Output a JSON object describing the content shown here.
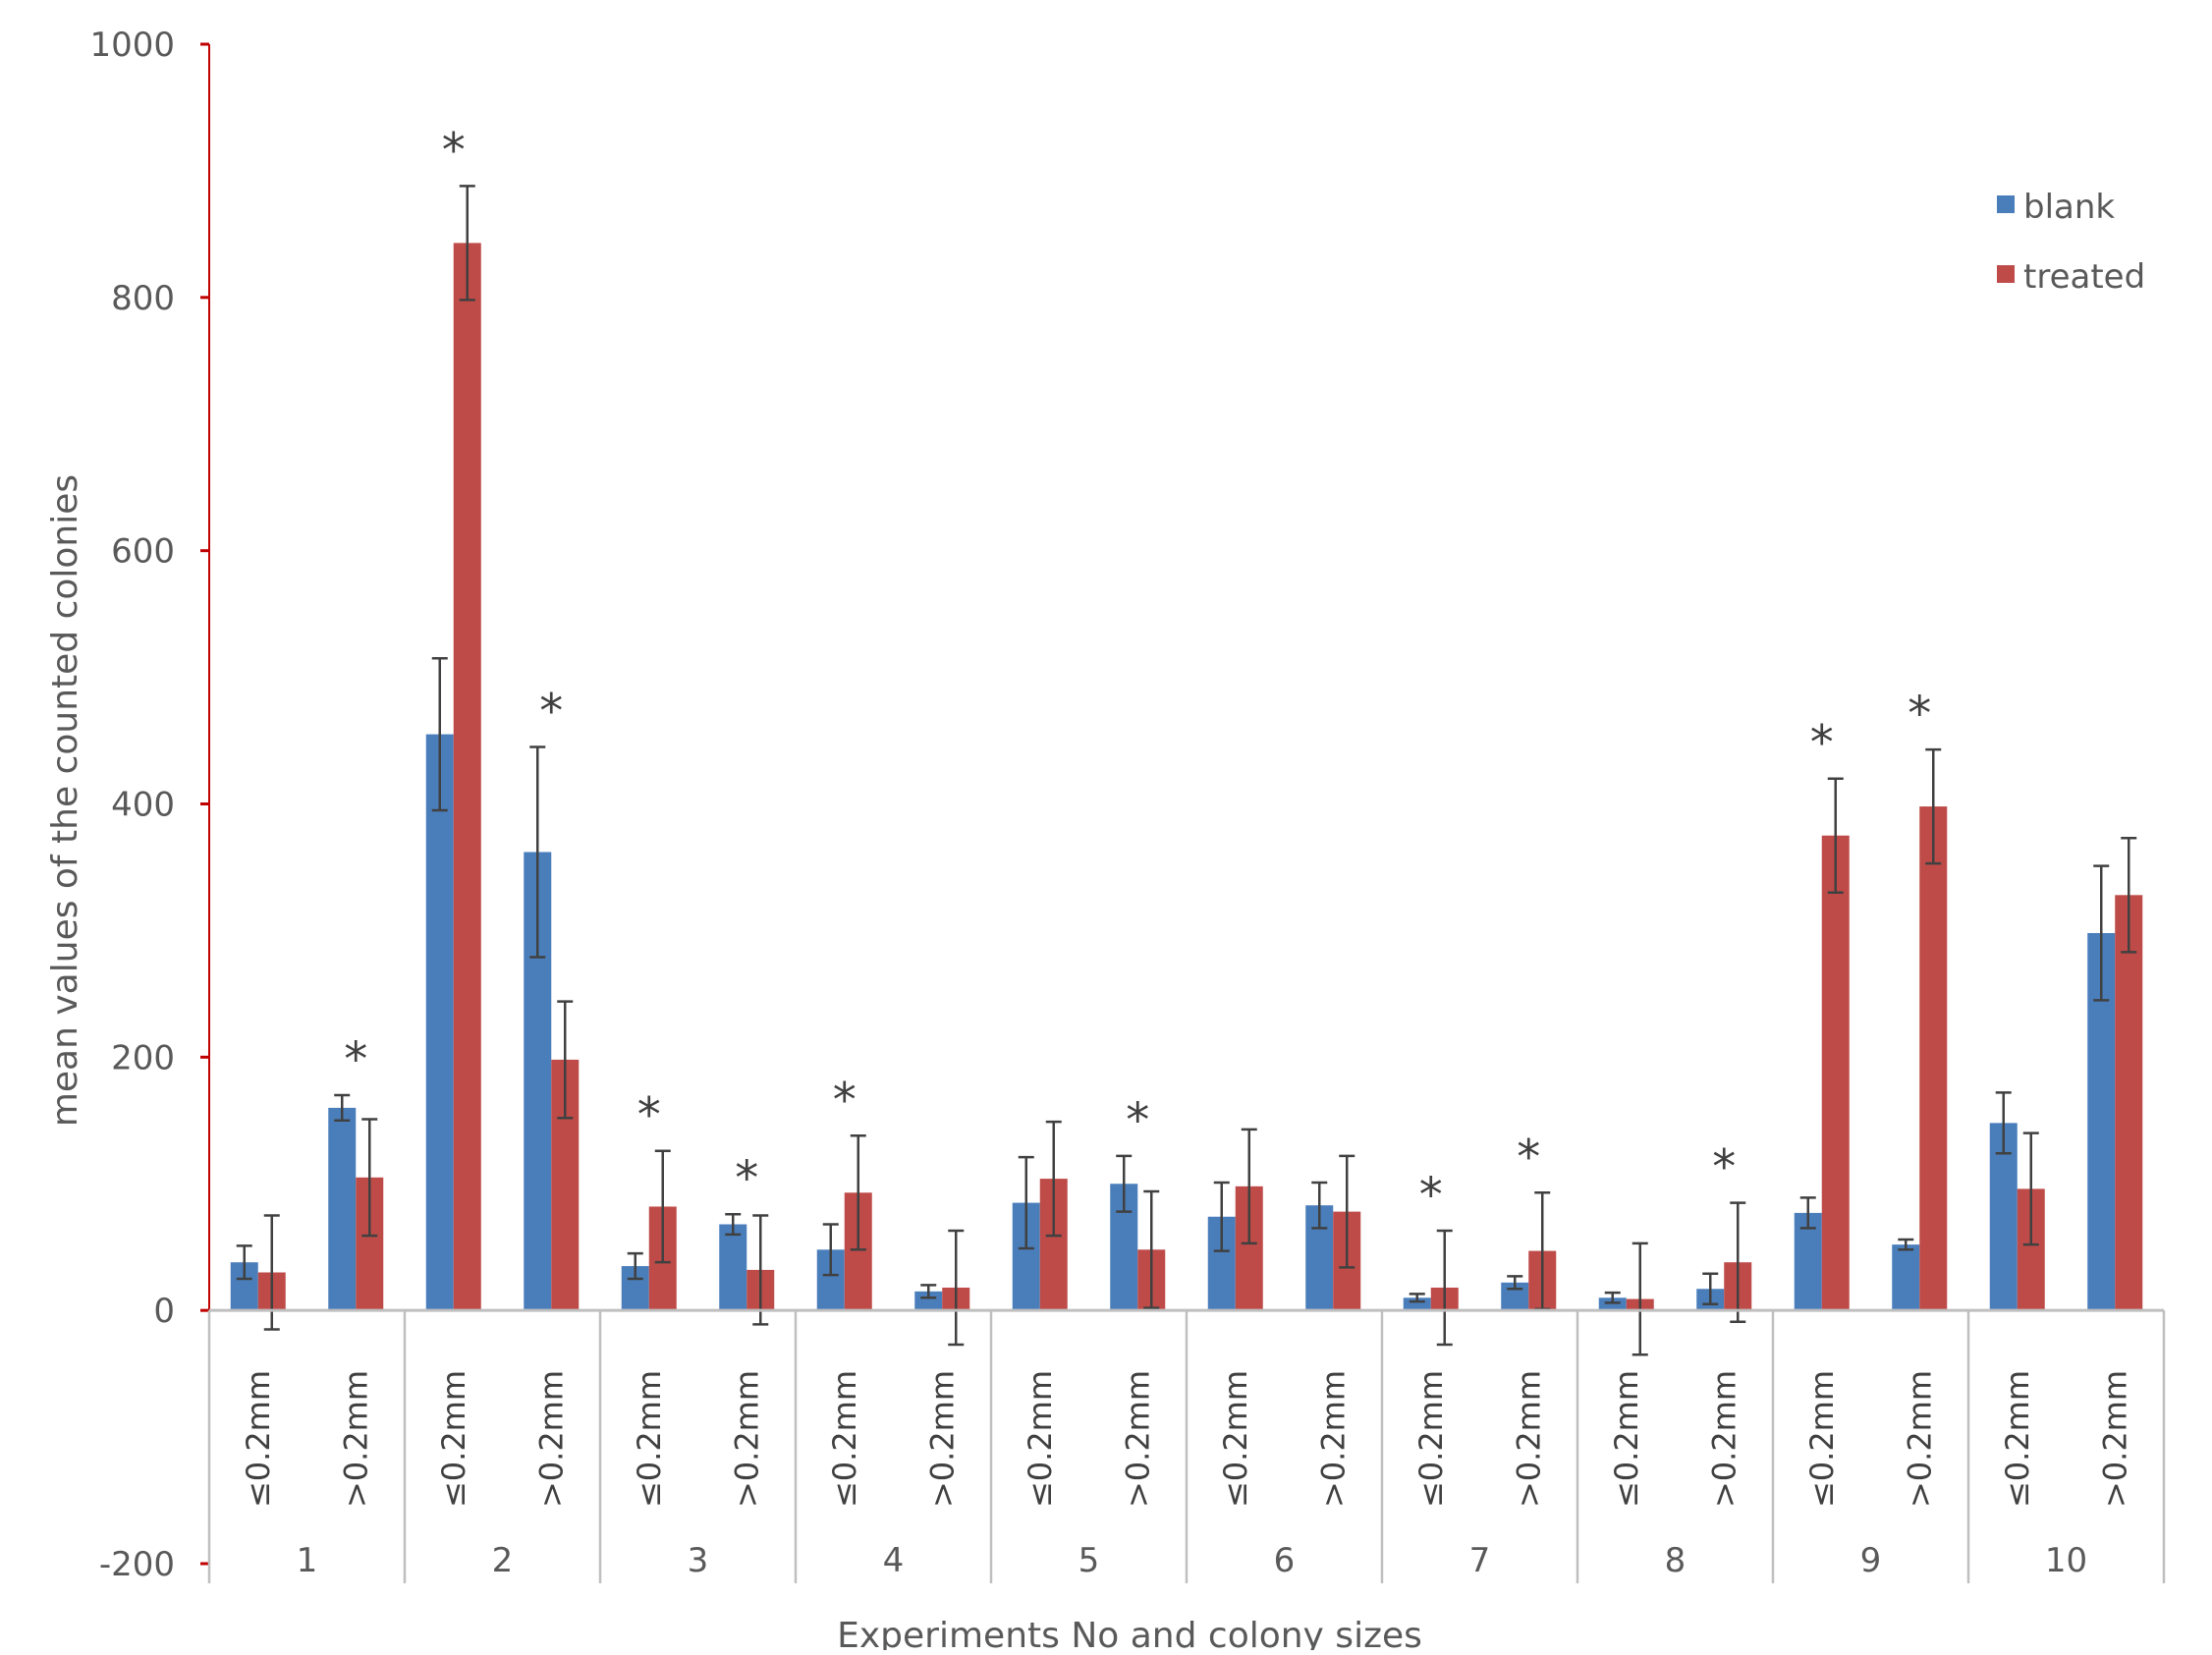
{
  "chart_data": {
    "type": "bar",
    "title": "",
    "xlabel": "Experiments No and colony sizes",
    "ylabel": "mean values of the counted colonies",
    "ylim": [
      -200,
      1000
    ],
    "yticks": [
      "1000",
      "800",
      "600",
      "400",
      "200",
      "0",
      "-200"
    ],
    "ytick_values": [
      1000,
      800,
      600,
      400,
      200,
      0,
      -200
    ],
    "grid": false,
    "legend_position": "top-right",
    "groups": [
      "1",
      "2",
      "3",
      "4",
      "5",
      "6",
      "7",
      "8",
      "9",
      "10"
    ],
    "size_labels": [
      "≤0.2mm",
      ">0.2mm"
    ],
    "categories": [
      "1 ≤0.2mm",
      "1 >0.2mm",
      "2 ≤0.2mm",
      "2 >0.2mm",
      "3 ≤0.2mm",
      "3 >0.2mm",
      "4 ≤0.2mm",
      "4 >0.2mm",
      "5 ≤0.2mm",
      "5 >0.2mm",
      "6 ≤0.2mm",
      "6 >0.2mm",
      "7 ≤0.2mm",
      "7 >0.2mm",
      "8 ≤0.2mm",
      "8 >0.2mm",
      "9 ≤0.2mm",
      "9 >0.2mm",
      "10 ≤0.2mm",
      "10 >0.2mm"
    ],
    "series": [
      {
        "name": "blank",
        "color": "#4a7ebb",
        "values": [
          38,
          160,
          455,
          362,
          35,
          68,
          48,
          15,
          85,
          100,
          74,
          83,
          10,
          22,
          10,
          17,
          77,
          52,
          148,
          298
        ],
        "error": [
          13,
          10,
          60,
          83,
          10,
          8,
          20,
          5,
          36,
          22,
          27,
          18,
          3,
          5,
          4,
          12,
          12,
          4,
          24,
          53
        ]
      },
      {
        "name": "treated",
        "color": "#be4b48",
        "values": [
          30,
          105,
          843,
          198,
          82,
          32,
          93,
          18,
          104,
          48,
          98,
          78,
          18,
          47,
          9,
          38,
          375,
          398,
          96,
          328
        ],
        "error": [
          45,
          46,
          45,
          46,
          44,
          43,
          45,
          45,
          45,
          46,
          45,
          44,
          45,
          46,
          44,
          47,
          45,
          45,
          44,
          45
        ]
      }
    ],
    "significance_markers": [
      {
        "category": "1 >0.2mm",
        "label": "*"
      },
      {
        "category": "2 ≤0.2mm",
        "label": "*"
      },
      {
        "category": "2 >0.2mm",
        "label": "*"
      },
      {
        "category": "3 ≤0.2mm",
        "label": "*"
      },
      {
        "category": "3 >0.2mm",
        "label": "*"
      },
      {
        "category": "4 ≤0.2mm",
        "label": "*"
      },
      {
        "category": "5 >0.2mm",
        "label": "*"
      },
      {
        "category": "7 ≤0.2mm",
        "label": "*"
      },
      {
        "category": "7 >0.2mm",
        "label": "*"
      },
      {
        "category": "8 >0.2mm",
        "label": "*"
      },
      {
        "category": "9 ≤0.2mm",
        "label": "*"
      },
      {
        "category": "9 >0.2mm",
        "label": "*"
      }
    ],
    "colors": {
      "axis": "#bfbfbf",
      "y_axis_line": "#c00000",
      "error_bar": "#404040",
      "text": "#595959"
    }
  }
}
